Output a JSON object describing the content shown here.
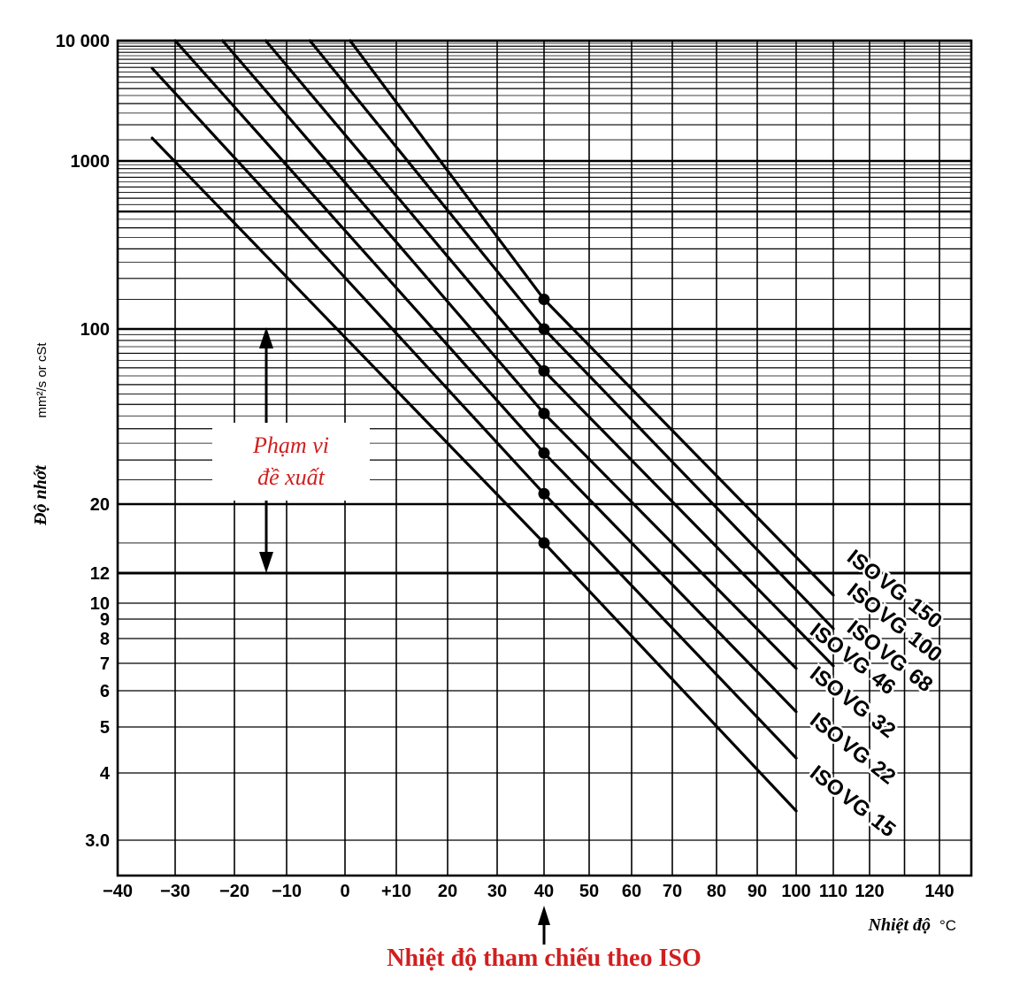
{
  "chart_data": {
    "type": "line",
    "title": "",
    "ylabel": "Độ nhớt",
    "yunit": "mm²/s or cSt",
    "xlabel": "Nhiệt độ",
    "xunit": "°C",
    "yscale": "log",
    "xlim": [
      -40,
      150
    ],
    "ylim": [
      2.3,
      10000
    ],
    "x_ticks": [
      "−40",
      "−30",
      "−20",
      "−10",
      "0",
      "+10",
      "20",
      "30",
      "40",
      "50",
      "60",
      "70",
      "80",
      "90",
      "100",
      "110",
      "120",
      "140"
    ],
    "x_tick_values": [
      -40,
      -30,
      -20,
      -10,
      0,
      10,
      20,
      30,
      40,
      50,
      60,
      70,
      80,
      90,
      100,
      110,
      120,
      140
    ],
    "y_ticks": [
      "10 000",
      "1000",
      "100",
      "20",
      "12",
      "10",
      "9",
      "8",
      "7",
      "6",
      "5",
      "4",
      "3.0"
    ],
    "y_tick_values": [
      10000,
      1000,
      100,
      20,
      12,
      10,
      9,
      8,
      7,
      6,
      5,
      4,
      3
    ],
    "grid": true,
    "reference_marker": {
      "x": 40,
      "label": "Nhiệt độ tham chiếu theo ISO"
    },
    "recommended_range": {
      "ymin": 12,
      "ymax": 100,
      "label_line1": "Phạm vi",
      "label_line2": "đề xuất"
    },
    "series": [
      {
        "name": "ISO VG 15",
        "label_lines": [
          "ISO",
          "VG",
          "15"
        ],
        "points": [
          [
            -34,
            1550
          ],
          [
            40,
            15
          ],
          [
            100,
            3.4
          ]
        ]
      },
      {
        "name": "ISO VG 22",
        "label_lines": [
          "ISO",
          "VG",
          "22"
        ],
        "points": [
          [
            -34,
            5900
          ],
          [
            40,
            22
          ],
          [
            100,
            4.3
          ]
        ]
      },
      {
        "name": "ISO VG 32",
        "label_lines": [
          "ISO",
          "VG",
          "32"
        ],
        "points": [
          [
            -30,
            10000
          ],
          [
            40,
            32
          ],
          [
            100,
            5.4
          ]
        ]
      },
      {
        "name": "ISO VG 46",
        "label_lines": [
          "ISO",
          "VG",
          "46"
        ],
        "points": [
          [
            -22,
            10000
          ],
          [
            40,
            46
          ],
          [
            100,
            6.8
          ]
        ]
      },
      {
        "name": "ISO VG 68",
        "label_lines": [
          "ISO",
          "VG",
          "68"
        ],
        "points": [
          [
            -14,
            10000
          ],
          [
            40,
            68
          ],
          [
            110,
            6.9
          ]
        ]
      },
      {
        "name": "ISO VG 100",
        "label_lines": [
          "ISO",
          "VG",
          "100"
        ],
        "points": [
          [
            -6,
            10000
          ],
          [
            40,
            100
          ],
          [
            110,
            8.5
          ]
        ]
      },
      {
        "name": "ISO VG 150",
        "label_lines": [
          "ISO",
          "VG",
          "150"
        ],
        "points": [
          [
            1,
            10000
          ],
          [
            40,
            150
          ],
          [
            110,
            10.5
          ]
        ]
      }
    ]
  }
}
